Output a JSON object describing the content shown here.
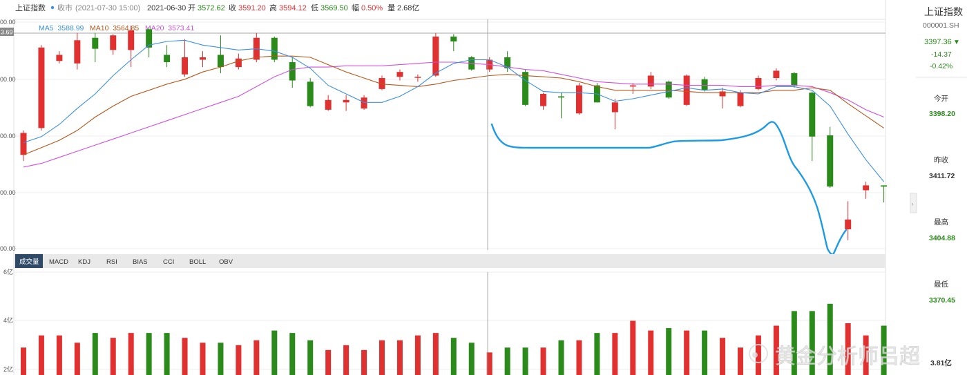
{
  "header": {
    "name": "上证指数",
    "status": "收市",
    "status_time": "(2021-07-30 15:00)",
    "date": "2021-06-30",
    "open_label": "开",
    "open_value": "3572.62",
    "close_label": "收",
    "close_value": "3591.20",
    "high_label": "高",
    "high_value": "3594.12",
    "low_label": "低",
    "low_value": "3569.50",
    "amp_label": "幅",
    "amp_value": "0.50%",
    "vol_label": "量",
    "vol_value": "2.68亿"
  },
  "ma_legend": {
    "ma5": "MA5  3588.99",
    "ma10": "MA10  3564.85",
    "ma20": "MA20  3573.41"
  },
  "price_axis": {
    "labels": [
      "00.00",
      "00.00",
      "00.00",
      "00.00",
      "00.00"
    ],
    "crosshair_label": "3.69"
  },
  "indicator_tabs": [
    "成交量",
    "MACD",
    "KDJ",
    "RSI",
    "BIAS",
    "CCI",
    "BOLL",
    "OBV"
  ],
  "active_tab": 0,
  "volume_axis": [
    "6亿",
    "4亿",
    "2亿"
  ],
  "sidebar": {
    "name": "上证指数",
    "code": "000001.SH",
    "price": "3397.36",
    "change": "-14.37",
    "change_pct": "-0.42%",
    "open_label": "今开",
    "open_value": "3398.20",
    "prev_label": "昨收",
    "prev_value": "3411.72",
    "high_label": "最高",
    "high_value": "3404.88",
    "low_label": "最低",
    "low_value": "3370.45",
    "vol_value": "3.81亿"
  },
  "watermark": "黄金分析师吕超",
  "colors": {
    "up": "#e03030",
    "down": "#2a8a1a",
    "ma5": "#3a8fe8",
    "ma10": "#b8561a",
    "ma20": "#d04fe0",
    "annotation": "#1a9ae8",
    "text_green": "#2a8a1a",
    "text_red": "#e03030"
  },
  "chart_data": {
    "type": "candlestick",
    "candles": [
      {
        "o": 3510,
        "c": 3528,
        "h": 3530,
        "l": 3505,
        "v": 2.9
      },
      {
        "o": 3532,
        "c": 3598,
        "h": 3600,
        "l": 3530,
        "v": 3.4
      },
      {
        "o": 3587,
        "c": 3592,
        "h": 3595,
        "l": 3585,
        "v": 3.4
      },
      {
        "o": 3585,
        "c": 3604,
        "h": 3610,
        "l": 3580,
        "v": 3.1
      },
      {
        "o": 3606,
        "c": 3597,
        "h": 3610,
        "l": 3586,
        "v": 3.5
      },
      {
        "o": 3596,
        "c": 3608,
        "h": 3609,
        "l": 3592,
        "v": 3.3
      },
      {
        "o": 3596,
        "c": 3612,
        "h": 3616,
        "l": 3582,
        "v": 3.5
      },
      {
        "o": 3613,
        "c": 3598,
        "h": 3615,
        "l": 3590,
        "v": 3.5
      },
      {
        "o": 3592,
        "c": 3586,
        "h": 3600,
        "l": 3582,
        "v": 3.5
      },
      {
        "o": 3576,
        "c": 3590,
        "h": 3605,
        "l": 3574,
        "v": 3.3
      },
      {
        "o": 3588,
        "c": 3590,
        "h": 3595,
        "l": 3582,
        "v": 3.1
      },
      {
        "o": 3592,
        "c": 3582,
        "h": 3608,
        "l": 3577,
        "v": 3.1
      },
      {
        "o": 3582,
        "c": 3589,
        "h": 3593,
        "l": 3580,
        "v": 3.0
      },
      {
        "o": 3588,
        "c": 3606,
        "h": 3610,
        "l": 3586,
        "v": 3.2
      },
      {
        "o": 3606,
        "c": 3588,
        "h": 3607,
        "l": 3586,
        "v": 3.6
      },
      {
        "o": 3586,
        "c": 3571,
        "h": 3590,
        "l": 3565,
        "v": 3.5
      },
      {
        "o": 3570,
        "c": 3550,
        "h": 3573,
        "l": 3549,
        "v": 3.2
      },
      {
        "o": 3547,
        "c": 3555,
        "h": 3559,
        "l": 3546,
        "v": 2.8
      },
      {
        "o": 3553,
        "c": 3555,
        "h": 3559,
        "l": 3546,
        "v": 3.0
      },
      {
        "o": 3548,
        "c": 3557,
        "h": 3559,
        "l": 3547,
        "v": 2.8
      },
      {
        "o": 3564,
        "c": 3573,
        "h": 3575,
        "l": 3563,
        "v": 3.2
      },
      {
        "o": 3574,
        "c": 3578,
        "h": 3580,
        "l": 3571,
        "v": 3.2
      },
      {
        "o": 3574,
        "c": 3574,
        "h": 3576,
        "l": 3570,
        "v": 3.4
      },
      {
        "o": 3575,
        "c": 3607,
        "h": 3610,
        "l": 3574,
        "v": 3.5
      },
      {
        "o": 3607,
        "c": 3603,
        "h": 3609,
        "l": 3595,
        "v": 3.3
      },
      {
        "o": 3590,
        "c": 3580,
        "h": 3591,
        "l": 3579,
        "v": 3.1
      },
      {
        "o": 3580,
        "c": 3588,
        "h": 3590,
        "l": 3578,
        "v": 2.7
      },
      {
        "o": 3590,
        "c": 3581,
        "h": 3595,
        "l": 3578,
        "v": 2.9
      },
      {
        "o": 3578,
        "c": 3551,
        "h": 3580,
        "l": 3550,
        "v": 2.9
      },
      {
        "o": 3550,
        "c": 3560,
        "h": 3561,
        "l": 3547,
        "v": 2.9
      },
      {
        "o": 3558,
        "c": 3557,
        "h": 3561,
        "l": 3540,
        "v": 3.2
      },
      {
        "o": 3544,
        "c": 3567,
        "h": 3569,
        "l": 3543,
        "v": 3.2
      },
      {
        "o": 3567,
        "c": 3553,
        "h": 3569,
        "l": 3553,
        "v": 3.5
      },
      {
        "o": 3545,
        "c": 3553,
        "h": 3556,
        "l": 3531,
        "v": 3.5
      },
      {
        "o": 3566,
        "c": 3567,
        "h": 3569,
        "l": 3560,
        "v": 4.0
      },
      {
        "o": 3566,
        "c": 3575,
        "h": 3578,
        "l": 3564,
        "v": 3.6
      },
      {
        "o": 3570,
        "c": 3557,
        "h": 3571,
        "l": 3556,
        "v": 3.7
      },
      {
        "o": 3551,
        "c": 3575,
        "h": 3576,
        "l": 3550,
        "v": 3.6
      },
      {
        "o": 3572,
        "c": 3563,
        "h": 3574,
        "l": 3562,
        "v": 3.6
      },
      {
        "o": 3558,
        "c": 3562,
        "h": 3565,
        "l": 3548,
        "v": 3.3
      },
      {
        "o": 3550,
        "c": 3561,
        "h": 3563,
        "l": 3549,
        "v": 2.9
      },
      {
        "o": 3564,
        "c": 3573,
        "h": 3575,
        "l": 3563,
        "v": 3.4
      },
      {
        "o": 3573,
        "c": 3579,
        "h": 3581,
        "l": 3571,
        "v": 3.8
      },
      {
        "o": 3577,
        "c": 3567,
        "h": 3578,
        "l": 3565,
        "v": 4.4
      },
      {
        "o": 3561,
        "c": 3525,
        "h": 3562,
        "l": 3505,
        "v": 4.4
      },
      {
        "o": 3526,
        "c": 3484,
        "h": 3533,
        "l": 3483,
        "v": 4.7
      },
      {
        "o": 3449,
        "c": 3457,
        "h": 3472,
        "l": 3440,
        "v": 3.9
      },
      {
        "o": 3481,
        "c": 3485,
        "h": 3488,
        "l": 3474,
        "v": 3.4
      },
      {
        "o": 3485,
        "c": 3484,
        "h": 3485,
        "l": 3471,
        "v": 3.8
      }
    ],
    "ma5": [
      3520,
      3525,
      3535,
      3548,
      3560,
      3575,
      3588,
      3600,
      3603,
      3604,
      3600,
      3598,
      3596,
      3597,
      3595,
      3590,
      3581,
      3567,
      3560,
      3553,
      3553,
      3558,
      3566,
      3577,
      3585,
      3588,
      3588,
      3582,
      3571,
      3562,
      3561,
      3561,
      3560,
      3554,
      3556,
      3559,
      3562,
      3565,
      3563,
      3564,
      3561,
      3560,
      3566,
      3566,
      3563,
      3550,
      3527,
      3506,
      3488
    ],
    "ma10": [
      3510,
      3516,
      3522,
      3530,
      3541,
      3550,
      3558,
      3563,
      3568,
      3572,
      3578,
      3582,
      3587,
      3590,
      3591,
      3591,
      3590,
      3584,
      3578,
      3573,
      3568,
      3567,
      3566,
      3568,
      3571,
      3573,
      3575,
      3576,
      3575,
      3574,
      3573,
      3570,
      3566,
      3563,
      3563,
      3563,
      3563,
      3562,
      3561,
      3561,
      3561,
      3561,
      3563,
      3563,
      3565,
      3563,
      3552,
      3542,
      3532
    ],
    "ma20": [
      3500,
      3503,
      3508,
      3513,
      3518,
      3523,
      3528,
      3533,
      3538,
      3543,
      3548,
      3553,
      3558,
      3566,
      3574,
      3580,
      3582,
      3582,
      3583,
      3583,
      3583,
      3584,
      3585,
      3586,
      3586,
      3585,
      3584,
      3582,
      3580,
      3579,
      3576,
      3573,
      3570,
      3569,
      3568,
      3568,
      3568,
      3567,
      3567,
      3567,
      3566,
      3566,
      3567,
      3567,
      3566,
      3561,
      3555,
      3547,
      3541
    ]
  }
}
